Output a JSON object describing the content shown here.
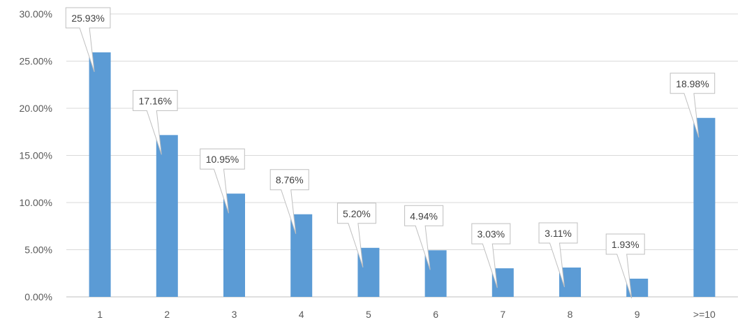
{
  "chart_data": {
    "type": "bar",
    "title": "",
    "xlabel": "",
    "ylabel": "",
    "categories": [
      "1",
      "2",
      "3",
      "4",
      "5",
      "6",
      "7",
      "8",
      "9",
      ">=10"
    ],
    "values": [
      25.93,
      17.16,
      10.95,
      8.76,
      5.2,
      4.94,
      3.03,
      3.11,
      1.93,
      18.98
    ],
    "data_labels": [
      "25.93%",
      "17.16%",
      "10.95%",
      "8.76%",
      "5.20%",
      "4.94%",
      "3.03%",
      "3.11%",
      "1.93%",
      "18.98%"
    ],
    "y_ticks": [
      0,
      5,
      10,
      15,
      20,
      25,
      30
    ],
    "y_tick_labels": [
      "0.00%",
      "5.00%",
      "10.00%",
      "15.00%",
      "20.00%",
      "25.00%",
      "30.00%"
    ],
    "ylim": [
      0,
      30
    ],
    "grid": true,
    "legend": "none",
    "colors": {
      "bar": "#5b9bd5",
      "grid": "#d9d9d9",
      "axis": "#bfbfbf",
      "callout_border": "#bfbfbf",
      "callout_fill": "#ffffff"
    }
  }
}
